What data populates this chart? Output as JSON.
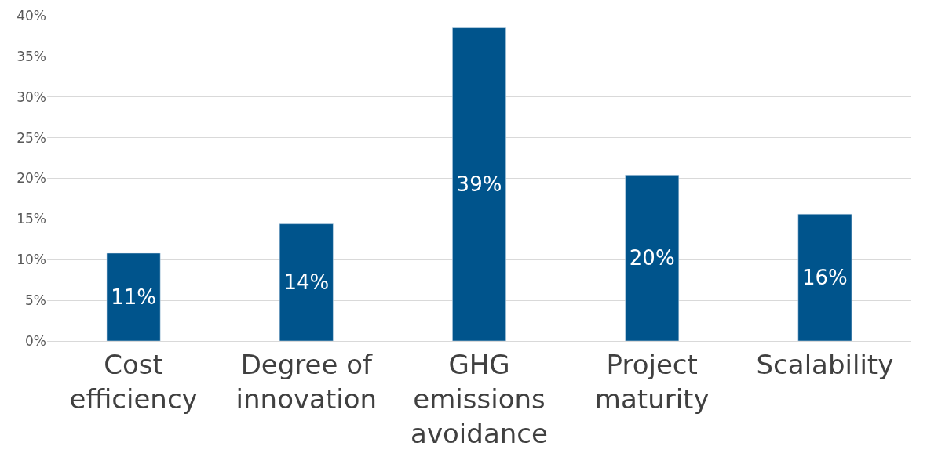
{
  "chart_data": {
    "type": "bar",
    "categories": [
      "Cost efficiency",
      "Degree of innovation",
      "GHG emissions avoidance",
      "Project maturity",
      "Scalability"
    ],
    "values": [
      10.8,
      14.4,
      38.5,
      20.4,
      15.6
    ],
    "value_labels": [
      "11%",
      "14%",
      "39%",
      "20%",
      "16%"
    ],
    "color": "#00548c",
    "ylim": [
      0,
      40
    ],
    "yticks": [
      {
        "value": 0,
        "label": "0%"
      },
      {
        "value": 5,
        "label": "5%"
      },
      {
        "value": 10,
        "label": "10%"
      },
      {
        "value": 15,
        "label": "15%"
      },
      {
        "value": 20,
        "label": "20%"
      },
      {
        "value": 25,
        "label": "25%"
      },
      {
        "value": 30,
        "label": "30%"
      },
      {
        "value": 35,
        "label": "35%"
      },
      {
        "value": 40,
        "label": "40%"
      }
    ],
    "grid": "y",
    "legend": false
  }
}
